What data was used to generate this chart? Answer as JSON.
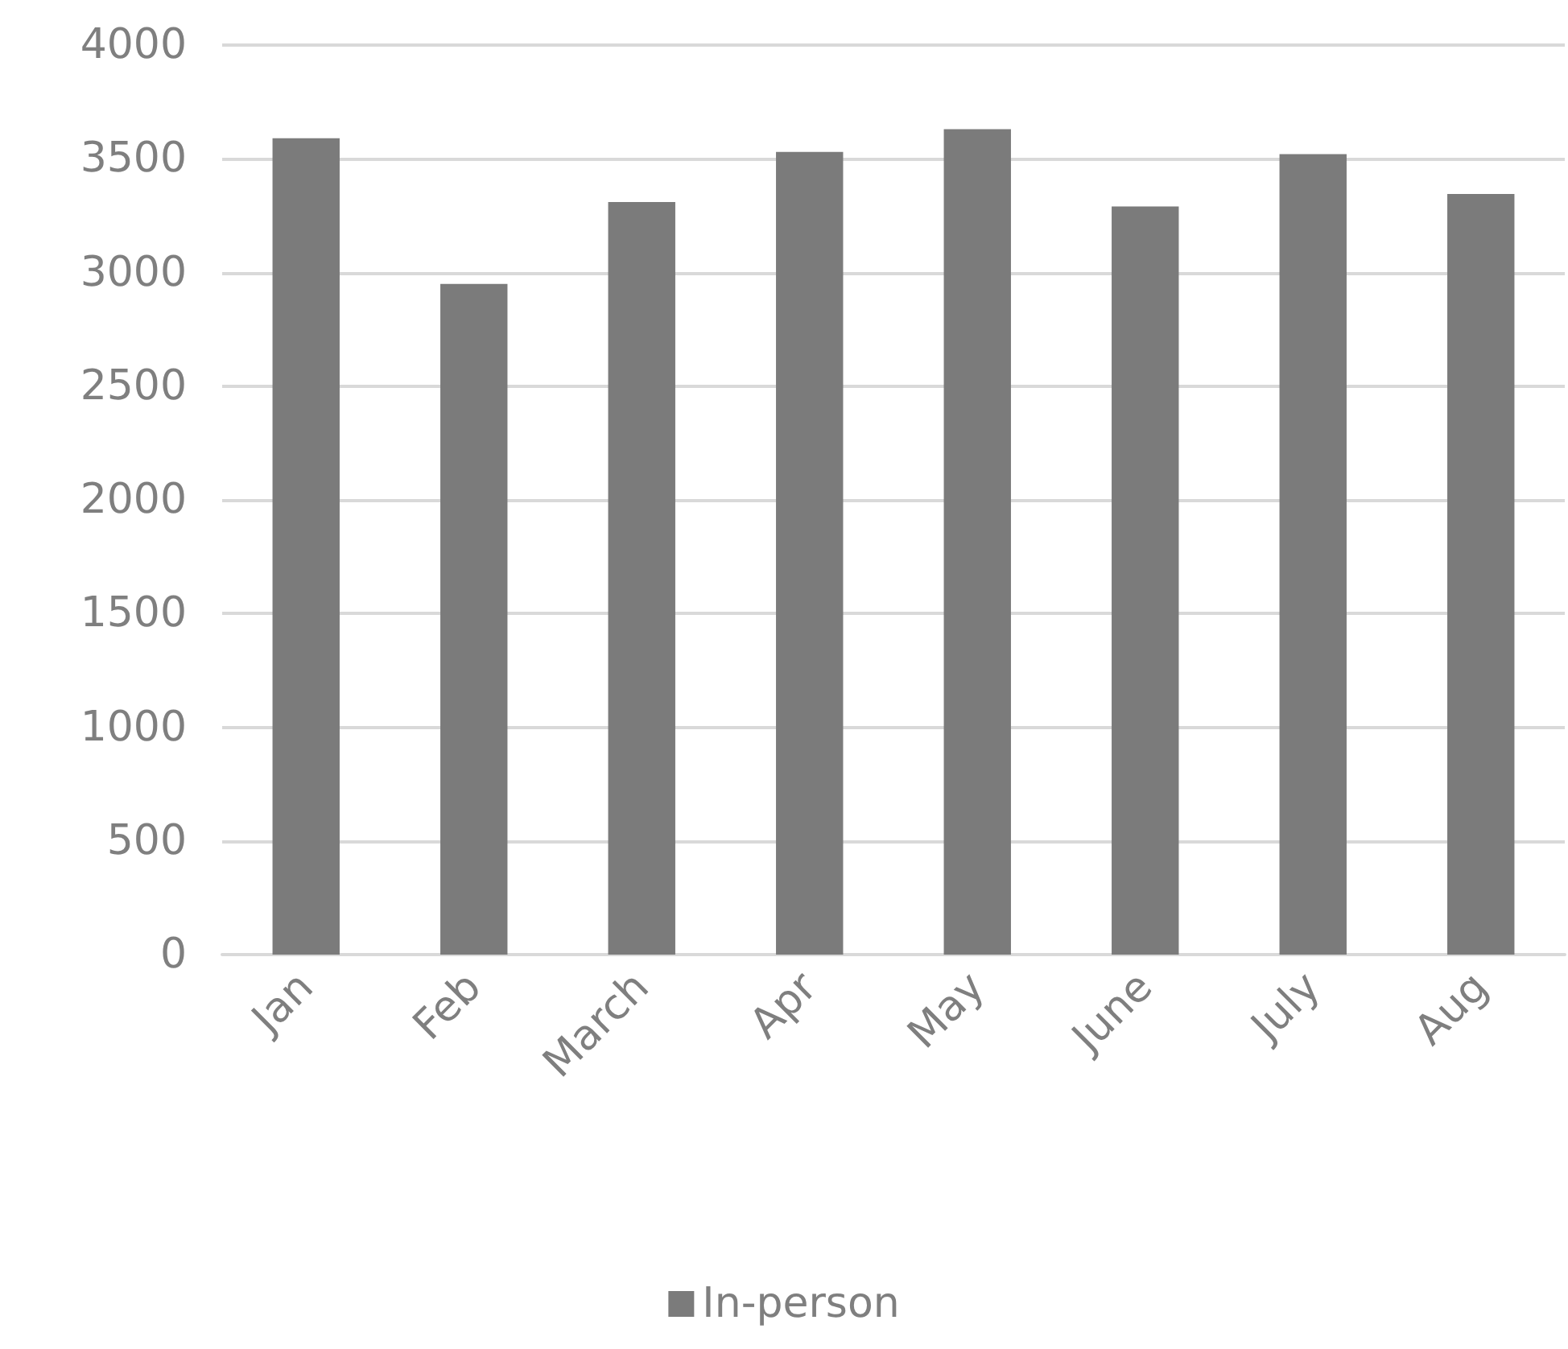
{
  "chart_data": {
    "type": "bar",
    "categories": [
      "Jan",
      "Feb",
      "March",
      "Apr",
      "May",
      "June",
      "July",
      "Aug"
    ],
    "series": [
      {
        "name": "In-person",
        "color": "#7b7b7b",
        "values": [
          3590,
          2950,
          3310,
          3530,
          3630,
          3290,
          3520,
          3345
        ]
      }
    ],
    "ylim": [
      0,
      4000
    ],
    "yticks": [
      0,
      500,
      1000,
      1500,
      2000,
      2500,
      3000,
      3500,
      4000
    ],
    "grid": "y",
    "legend": "bottom"
  }
}
